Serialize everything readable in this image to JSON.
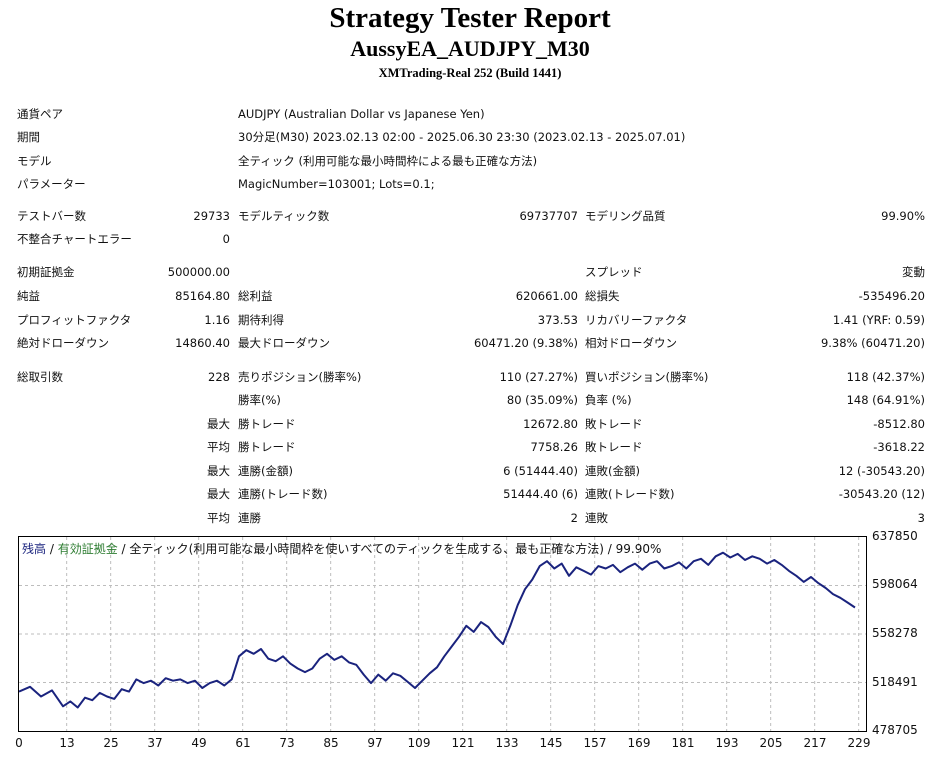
{
  "header": {
    "title": "Strategy Tester Report",
    "subtitle": "AussyEA_AUDJPY_M30",
    "server": "XMTrading-Real 252 (Build 1441)"
  },
  "settings": [
    {
      "label": "通貨ペア",
      "value": "AUDJPY (Australian Dollar vs Japanese Yen)"
    },
    {
      "label": "期間",
      "value": "30分足(M30) 2023.02.13 02:00 - 2025.06.30 23:30 (2023.02.13 - 2025.07.01)"
    },
    {
      "label": "モデル",
      "value": "全ティック (利用可能な最小時間枠による最も正確な方法)"
    },
    {
      "label": "パラメーター",
      "value": "MagicNumber=103001; Lots=0.1;"
    }
  ],
  "stats": {
    "test_bars": {
      "label": "テストバー数",
      "value": "29733"
    },
    "model_ticks": {
      "label": "モデルティック数",
      "value": "69737707"
    },
    "modeling_quality": {
      "label": "モデリング品質",
      "value": "99.90%"
    },
    "mismatch_errors": {
      "label": "不整合チャートエラー",
      "value": "0"
    },
    "initial_deposit": {
      "label": "初期証拠金",
      "value": "500000.00"
    },
    "spread": {
      "label": "スプレッド",
      "value": "変動"
    },
    "net_profit": {
      "label": "純益",
      "value": "85164.80"
    },
    "gross_profit": {
      "label": "総利益",
      "value": "620661.00"
    },
    "gross_loss": {
      "label": "総損失",
      "value": "-535496.20"
    },
    "profit_factor": {
      "label": "プロフィットファクタ",
      "value": "1.16"
    },
    "expected_payoff": {
      "label": "期待利得",
      "value": "373.53"
    },
    "recovery_factor": {
      "label": "リカバリーファクタ",
      "value": "1.41 (YRF: 0.59)"
    },
    "abs_drawdown": {
      "label": "絶対ドローダウン",
      "value": "14860.40"
    },
    "max_drawdown": {
      "label": "最大ドローダウン",
      "value": "60471.20 (9.38%)"
    },
    "rel_drawdown": {
      "label": "相対ドローダウン",
      "value": "9.38% (60471.20)"
    },
    "total_trades": {
      "label": "総取引数",
      "value": "228"
    },
    "short_positions": {
      "label": "売りポジション(勝率%)",
      "value": "110 (27.27%)"
    },
    "long_positions": {
      "label": "買いポジション(勝率%)",
      "value": "118 (42.37%)"
    },
    "win_rate": {
      "label": "勝率(%)",
      "value": "80 (35.09%)"
    },
    "loss_rate": {
      "label": "負率 (%)",
      "value": "148 (64.91%)"
    },
    "largest_win": {
      "prefix": "最大",
      "label": "勝トレード",
      "value": "12672.80"
    },
    "largest_loss": {
      "label": "敗トレード",
      "value": "-8512.80"
    },
    "avg_win": {
      "prefix": "平均",
      "label": "勝トレード",
      "value": "7758.26"
    },
    "avg_loss": {
      "label": "敗トレード",
      "value": "-3618.22"
    },
    "max_consec_wins_money": {
      "prefix": "最大",
      "label": "連勝(金額)",
      "value": "6 (51444.40)"
    },
    "max_consec_losses_money": {
      "label": "連敗(金額)",
      "value": "12 (-30543.20)"
    },
    "max_consec_wins_count": {
      "prefix": "最大",
      "label": "連勝(トレード数)",
      "value": "51444.40 (6)"
    },
    "max_consec_losses_count": {
      "label": "連敗(トレード数)",
      "value": "-30543.20 (12)"
    },
    "avg_consec_wins": {
      "prefix": "平均",
      "label": "連勝",
      "value": "2"
    },
    "avg_consec_losses": {
      "label": "連敗",
      "value": "3"
    }
  },
  "legend": {
    "balance": "残高",
    "sep1": " / ",
    "equity": "有効証拠金",
    "sep2": " / ",
    "rest": "全ティック(利用可能な最小時間枠を使いすべてのティックを生成する、最も正確な方法) / 99.90%"
  },
  "colors": {
    "balance_line": "#1a237e",
    "equity_label": "#2e7d32",
    "grid": "#bdbdbd"
  },
  "chart_data": {
    "type": "line",
    "series": [
      {
        "name": "残高",
        "x": [
          0,
          3,
          6,
          9,
          12,
          14,
          16,
          18,
          20,
          22,
          24,
          26,
          28,
          30,
          32,
          34,
          36,
          38,
          40,
          42,
          44,
          46,
          48,
          50,
          52,
          54,
          56,
          58,
          60,
          62,
          64,
          66,
          68,
          70,
          72,
          74,
          76,
          78,
          80,
          82,
          84,
          86,
          88,
          90,
          92,
          94,
          96,
          98,
          100,
          102,
          104,
          106,
          108,
          110,
          112,
          114,
          116,
          118,
          120,
          122,
          124,
          126,
          128,
          130,
          132,
          134,
          136,
          138,
          140,
          142,
          144,
          146,
          148,
          150,
          152,
          154,
          156,
          158,
          160,
          162,
          164,
          166,
          168,
          170,
          172,
          174,
          176,
          178,
          180,
          182,
          184,
          186,
          188,
          190,
          192,
          194,
          196,
          198,
          200,
          202,
          204,
          206,
          208,
          210,
          212,
          214,
          216,
          218,
          220,
          222,
          224,
          226,
          228
        ],
        "values": [
          511000,
          515000,
          507000,
          512000,
          499000,
          503000,
          498000,
          506000,
          504000,
          510000,
          507000,
          505000,
          513000,
          511000,
          521000,
          518000,
          520000,
          516000,
          522000,
          520000,
          521000,
          518000,
          520000,
          514000,
          518000,
          520000,
          516000,
          521000,
          540000,
          545000,
          542000,
          546000,
          538000,
          536000,
          540000,
          534000,
          530000,
          527000,
          530000,
          538000,
          542000,
          537000,
          540000,
          535000,
          533000,
          525000,
          518000,
          525000,
          520000,
          526000,
          524000,
          519000,
          514000,
          520000,
          526000,
          531000,
          540000,
          548000,
          556000,
          565000,
          560000,
          568000,
          564000,
          556000,
          550000,
          565000,
          582000,
          595000,
          603000,
          614000,
          618000,
          612000,
          616000,
          606000,
          613000,
          610000,
          607000,
          614000,
          612000,
          615000,
          609000,
          613000,
          616000,
          611000,
          616000,
          618000,
          612000,
          614000,
          617000,
          612000,
          618000,
          620000,
          615000,
          622000,
          625000,
          621000,
          624000,
          619000,
          622000,
          620000,
          616000,
          619000,
          615000,
          610000,
          606000,
          601000,
          605000,
          600000,
          596000,
          591000,
          588000,
          584000,
          580000
        ]
      }
    ],
    "x_ticks": [
      0,
      13,
      25,
      37,
      49,
      61,
      73,
      85,
      97,
      109,
      121,
      133,
      145,
      157,
      169,
      181,
      193,
      205,
      217,
      229
    ],
    "y_ticks": [
      637850,
      598064,
      558278,
      518491,
      478705
    ],
    "xlim": [
      0,
      231
    ],
    "ylim": [
      478705,
      637850
    ],
    "grid": true
  }
}
